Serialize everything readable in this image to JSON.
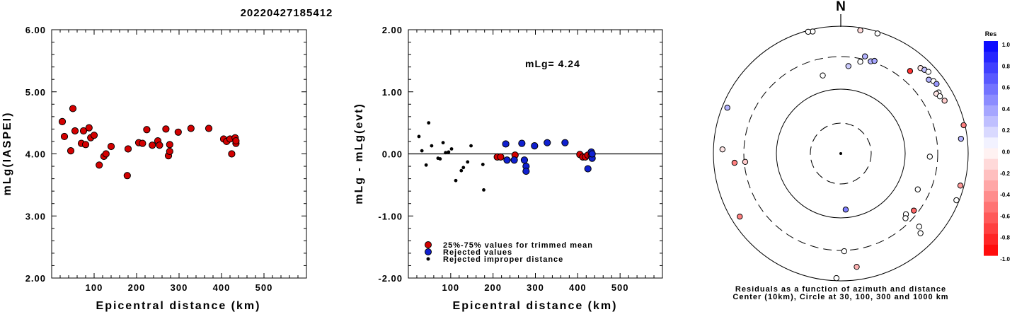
{
  "title": "20220427185412",
  "left_chart": {
    "ylabel": "mLg(IASPEI)",
    "xlabel": "Epicentral distance (km)",
    "xticks": [
      "100",
      "200",
      "300",
      "400",
      "500"
    ],
    "yticks": [
      "2.00",
      "3.00",
      "4.00",
      "5.00",
      "6.00"
    ]
  },
  "middle_chart": {
    "ylabel": "mLg - mLg(evt)",
    "xlabel": "Epicentral distance (km)",
    "xticks": [
      "100",
      "200",
      "300",
      "400",
      "500"
    ],
    "yticks": [
      "-2.00",
      "-1.00",
      "0.00",
      "1.00",
      "2.00"
    ],
    "annotation": "mLg= 4.24",
    "legend": [
      {
        "label": "25%-75% values for trimmed mean",
        "color": "#d40000"
      },
      {
        "label": "Rejected values",
        "color": "#1020d0"
      },
      {
        "label": "Rejected improper distance",
        "color": "#000000"
      }
    ]
  },
  "polar": {
    "north_label": "N",
    "caption_line1": "Residuals as a function of azimuth and distance",
    "caption_line2": "Center (10km), Circle at 30, 100, 300 and 1000 km"
  },
  "colorbar": {
    "title": "Res",
    "labels": [
      "1.0",
      "0.8",
      "0.6",
      "0.4",
      "0.2",
      "0.0",
      "-0.2",
      "-0.4",
      "-0.6",
      "-0.8",
      "-1.0"
    ]
  },
  "colors": {
    "red": "#d40000",
    "blue": "#1020d0",
    "black": "#000000"
  },
  "chart_data": [
    {
      "type": "scatter",
      "title": "20220427185412",
      "xlabel": "Epicentral distance (km)",
      "ylabel": "mLg(IASPEI)",
      "xlim": [
        0,
        600
      ],
      "ylim": [
        2.0,
        6.0
      ],
      "series": [
        {
          "name": "25%-75% values for trimmed mean",
          "color": "#d40000",
          "points": [
            [
              25,
              4.52
            ],
            [
              30,
              4.28
            ],
            [
              45,
              4.05
            ],
            [
              50,
              4.73
            ],
            [
              55,
              4.37
            ],
            [
              70,
              4.17
            ],
            [
              75,
              4.37
            ],
            [
              80,
              4.15
            ],
            [
              88,
              4.42
            ],
            [
              92,
              4.26
            ],
            [
              100,
              4.3
            ],
            [
              112,
              3.82
            ],
            [
              123,
              3.96
            ],
            [
              128,
              4.0
            ],
            [
              140,
              4.12
            ],
            [
              178,
              3.65
            ],
            [
              180,
              4.08
            ],
            [
              205,
              4.18
            ],
            [
              214,
              4.17
            ],
            [
              224,
              4.39
            ],
            [
              237,
              4.14
            ],
            [
              250,
              4.21
            ],
            [
              254,
              4.14
            ],
            [
              269,
              4.4
            ],
            [
              275,
              3.97
            ],
            [
              278,
              4.04
            ],
            [
              278,
              4.15
            ],
            [
              298,
              4.35
            ],
            [
              328,
              4.41
            ],
            [
              370,
              4.41
            ],
            [
              405,
              4.24
            ],
            [
              412,
              4.2
            ],
            [
              420,
              4.24
            ],
            [
              424,
              4.0
            ],
            [
              432,
              4.26
            ],
            [
              434,
              4.17
            ],
            [
              434,
              4.21
            ]
          ]
        }
      ]
    },
    {
      "type": "scatter",
      "xlabel": "Epicentral distance (km)",
      "ylabel": "mLg - mLg(evt)",
      "xlim": [
        0,
        600
      ],
      "ylim": [
        -2.0,
        2.0
      ],
      "annotation": "mLg= 4.24",
      "series": [
        {
          "name": "25%-75% values for trimmed mean",
          "color": "#d40000",
          "points": [
            [
              210,
              -0.05
            ],
            [
              218,
              -0.05
            ],
            [
              252,
              -0.02
            ],
            [
              405,
              -0.01
            ],
            [
              412,
              -0.05
            ],
            [
              418,
              -0.05
            ],
            [
              424,
              -0.02
            ],
            [
              432,
              -0.03
            ]
          ]
        },
        {
          "name": "Rejected values",
          "color": "#1020d0",
          "points": [
            [
              230,
              0.16
            ],
            [
              233,
              -0.1
            ],
            [
              250,
              -0.1
            ],
            [
              268,
              0.17
            ],
            [
              274,
              -0.1
            ],
            [
              278,
              -0.2
            ],
            [
              278,
              -0.28
            ],
            [
              298,
              0.13
            ],
            [
              328,
              0.18
            ],
            [
              370,
              0.18
            ],
            [
              424,
              -0.24
            ],
            [
              432,
              0.03
            ],
            [
              434,
              -0.07
            ],
            [
              434,
              0.0
            ]
          ]
        },
        {
          "name": "Rejected improper distance",
          "color": "#000000",
          "points": [
            [
              25,
              0.28
            ],
            [
              32,
              0.05
            ],
            [
              42,
              -0.18
            ],
            [
              48,
              0.5
            ],
            [
              55,
              0.13
            ],
            [
              70,
              -0.07
            ],
            [
              75,
              -0.08
            ],
            [
              82,
              0.18
            ],
            [
              88,
              0.02
            ],
            [
              95,
              0.03
            ],
            [
              102,
              0.08
            ],
            [
              112,
              -0.43
            ],
            [
              125,
              -0.27
            ],
            [
              130,
              -0.22
            ],
            [
              140,
              -0.13
            ],
            [
              148,
              0.13
            ],
            [
              176,
              -0.17
            ],
            [
              178,
              -0.58
            ]
          ]
        }
      ]
    },
    {
      "type": "scatter",
      "title": "Residuals as a function of azimuth and distance",
      "note": "polar azimuth-distance plot; rings at 30, 100, 300 and 1000 km",
      "points": [
        {
          "az": 347,
          "dist_km": 920,
          "res": 0.0
        },
        {
          "az": 345,
          "dist_km": 950,
          "res": 0.0
        },
        {
          "az": 9,
          "dist_km": 900,
          "res": -0.15
        },
        {
          "az": 17,
          "dist_km": 930,
          "res": 0.0
        },
        {
          "az": 5,
          "dist_km": 220,
          "res": 0.2
        },
        {
          "az": 12,
          "dist_km": 270,
          "res": 0.0
        },
        {
          "az": 18,
          "dist_km": 300,
          "res": 0.3
        },
        {
          "az": 14,
          "dist_km": 340,
          "res": 0.3
        },
        {
          "az": 20,
          "dist_km": 320,
          "res": 0.35
        },
        {
          "az": 347,
          "dist_km": 170,
          "res": 0.0
        },
        {
          "az": 40,
          "dist_km": 460,
          "res": -0.8
        },
        {
          "az": 43,
          "dist_km": 660,
          "res": -0.1
        },
        {
          "az": 45,
          "dist_km": 700,
          "res": 0.25
        },
        {
          "az": 47,
          "dist_km": 740,
          "res": 0.0
        },
        {
          "az": 50,
          "dist_km": 610,
          "res": 0.3
        },
        {
          "az": 52,
          "dist_km": 680,
          "res": 0.0
        },
        {
          "az": 54,
          "dist_km": 700,
          "res": 0.4
        },
        {
          "az": 58,
          "dist_km": 620,
          "res": 0.0
        },
        {
          "az": 63,
          "dist_km": 650,
          "res": -0.2
        },
        {
          "az": 58,
          "dist_km": 560,
          "res": -0.1
        },
        {
          "az": 60,
          "dist_km": 600,
          "res": 0.0
        },
        {
          "az": 77,
          "dist_km": 950,
          "res": -0.5
        },
        {
          "az": 83,
          "dist_km": 780,
          "res": 0.3
        },
        {
          "az": 92,
          "dist_km": 230,
          "res": 0.0
        },
        {
          "az": 115,
          "dist_km": 200,
          "res": 0.0
        },
        {
          "az": 128,
          "dist_km": 260,
          "res": -0.6
        },
        {
          "az": 105,
          "dist_km": 870,
          "res": -0.4
        },
        {
          "az": 112,
          "dist_km": 900,
          "res": 0.0
        },
        {
          "az": 133,
          "dist_km": 230,
          "res": 0.0
        },
        {
          "az": 135,
          "dist_km": 250,
          "res": 0.0
        },
        {
          "az": 133,
          "dist_km": 450,
          "res": 0.0
        },
        {
          "az": 135,
          "dist_km": 560,
          "res": 0.0
        },
        {
          "az": 175,
          "dist_km": 75,
          "res": 0.5
        },
        {
          "az": 178,
          "dist_km": 310,
          "res": 0.0
        },
        {
          "az": 172,
          "dist_km": 600,
          "res": -0.3
        },
        {
          "az": 182,
          "dist_km": 900,
          "res": 0.0
        },
        {
          "az": 238,
          "dist_km": 720,
          "res": -0.5
        },
        {
          "az": 265,
          "dist_km": 290,
          "res": -0.2
        },
        {
          "az": 265,
          "dist_km": 440,
          "res": -0.5
        },
        {
          "az": 272,
          "dist_km": 700,
          "res": -0.1
        },
        {
          "az": 292,
          "dist_km": 820,
          "res": 0.3
        }
      ]
    }
  ]
}
